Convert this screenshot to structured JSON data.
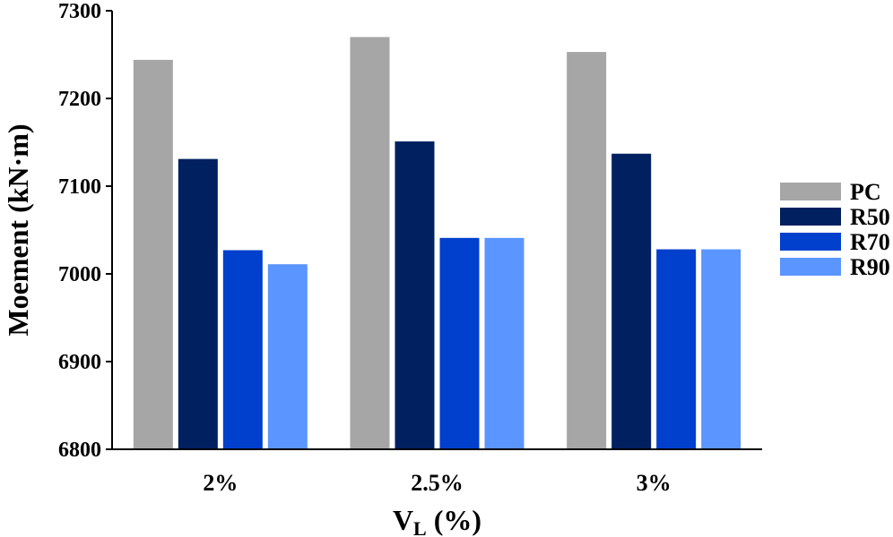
{
  "chart_data": {
    "type": "bar",
    "title": "",
    "xlabel_main": "V",
    "xlabel_sub": "L",
    "xlabel_unit": " (%)",
    "ylabel": "Moement (kN·m)",
    "ylim": [
      6800,
      7300
    ],
    "yticks": [
      6800,
      6900,
      7000,
      7100,
      7200,
      7300
    ],
    "ytick_labels": [
      "6800",
      "6900",
      "7000",
      "7100",
      "7200",
      "7300"
    ],
    "categories": [
      "2%",
      "2.5%",
      "3%"
    ],
    "legend_position": "right",
    "series": [
      {
        "name": "PC",
        "color": "#a6a6a6",
        "values": [
          7244,
          7270,
          7253
        ]
      },
      {
        "name": "R50",
        "color": "#002060",
        "values": [
          7131,
          7151,
          7137
        ]
      },
      {
        "name": "R70",
        "color": "#0040cc",
        "values": [
          7027,
          7041,
          7028
        ]
      },
      {
        "name": "R90",
        "color": "#5b95ff",
        "values": [
          7011,
          7041,
          7028
        ]
      }
    ]
  }
}
